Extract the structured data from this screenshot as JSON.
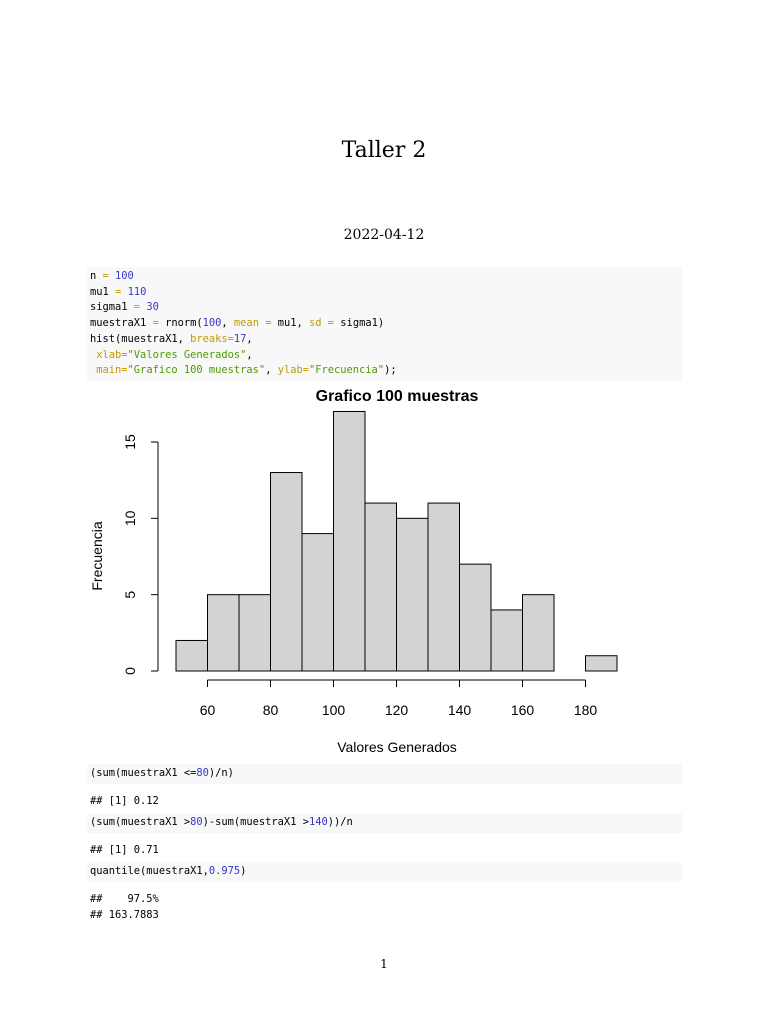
{
  "document": {
    "title": "Taller 2",
    "date": "2022-04-12",
    "page_number": "1"
  },
  "code_block_1": {
    "lines": [
      [
        {
          "t": "n "
        },
        {
          "t": "=",
          "c": "arg"
        },
        {
          "t": " "
        },
        {
          "t": "100",
          "c": "num"
        }
      ],
      [
        {
          "t": "mu1 "
        },
        {
          "t": "=",
          "c": "arg"
        },
        {
          "t": " "
        },
        {
          "t": "110",
          "c": "num"
        }
      ],
      [
        {
          "t": "sigma1 "
        },
        {
          "t": "=",
          "c": "arg"
        },
        {
          "t": " "
        },
        {
          "t": "30",
          "c": "num"
        }
      ],
      [
        {
          "t": "muestraX1 "
        },
        {
          "t": "=",
          "c": "arg"
        },
        {
          "t": " rnorm("
        },
        {
          "t": "100",
          "c": "num"
        },
        {
          "t": ", "
        },
        {
          "t": "mean =",
          "c": "arg"
        },
        {
          "t": " mu1, "
        },
        {
          "t": "sd =",
          "c": "arg"
        },
        {
          "t": " sigma1)"
        }
      ],
      [
        {
          "t": "hist(muestraX1, "
        },
        {
          "t": "breaks=",
          "c": "arg"
        },
        {
          "t": "17",
          "c": "num"
        },
        {
          "t": ","
        }
      ],
      [
        {
          "t": " "
        },
        {
          "t": "xlab=",
          "c": "arg"
        },
        {
          "t": "\"Valores Generados\"",
          "c": "str"
        },
        {
          "t": ","
        }
      ],
      [
        {
          "t": " "
        },
        {
          "t": "main=",
          "c": "arg"
        },
        {
          "t": "\"Grafico 100 muestras\"",
          "c": "str"
        },
        {
          "t": ", "
        },
        {
          "t": "ylab=",
          "c": "arg"
        },
        {
          "t": "\"Frecuencia\"",
          "c": "str"
        },
        {
          "t": ");"
        }
      ]
    ]
  },
  "chart_data": {
    "type": "bar",
    "title": "Grafico 100 muestras",
    "xlabel": "Valores Generados",
    "ylabel": "Frecuencia",
    "bin_edges": [
      50,
      60,
      70,
      80,
      90,
      100,
      110,
      120,
      130,
      140,
      150,
      160,
      170,
      180,
      190
    ],
    "values": [
      2,
      5,
      5,
      13,
      9,
      17,
      11,
      10,
      11,
      7,
      4,
      5,
      0,
      1
    ],
    "xlim": [
      60,
      180
    ],
    "x_ticks": [
      60,
      80,
      100,
      120,
      140,
      160,
      180
    ],
    "ylim": [
      0,
      15
    ],
    "y_ticks": [
      0,
      5,
      10,
      15
    ],
    "bar_fill": "#d3d3d3",
    "bar_stroke": "#000000",
    "grid": false
  },
  "code_block_2": {
    "lines": [
      [
        {
          "t": "(sum(muestraX1 <="
        },
        {
          "t": "80",
          "c": "num"
        },
        {
          "t": ")/n)"
        }
      ]
    ]
  },
  "output_1": "## [1] 0.12",
  "code_block_3": {
    "lines": [
      [
        {
          "t": "(sum(muestraX1 >"
        },
        {
          "t": "80",
          "c": "num"
        },
        {
          "t": ")-sum(muestraX1 >"
        },
        {
          "t": "140",
          "c": "num"
        },
        {
          "t": "))/n"
        }
      ]
    ]
  },
  "output_2": "## [1] 0.71",
  "code_block_4": {
    "lines": [
      [
        {
          "t": "quantile(muestraX1,"
        },
        {
          "t": "0.975",
          "c": "num"
        },
        {
          "t": ")"
        }
      ]
    ]
  },
  "output_3": {
    "line1": "##    97.5%",
    "line2": "## 163.7883"
  }
}
